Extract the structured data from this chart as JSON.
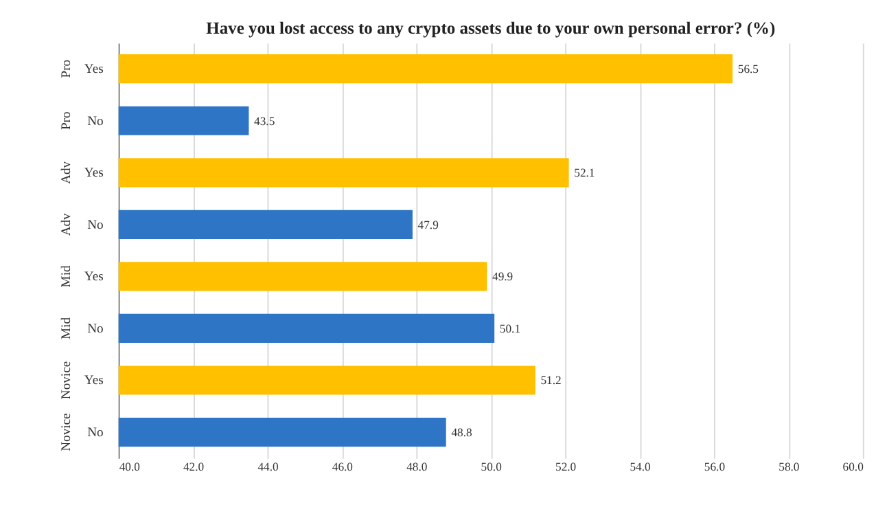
{
  "chart_data": {
    "type": "bar",
    "orientation": "horizontal",
    "title": "Have you lost access to any crypto assets due to your own personal error? (%)",
    "categories": [
      "Yes",
      "No",
      "Yes",
      "No",
      "Yes",
      "No",
      "Yes",
      "No"
    ],
    "values": [
      56.5,
      43.5,
      52.1,
      47.9,
      49.9,
      50.1,
      51.2,
      48.8
    ],
    "colors": [
      "#ffc000",
      "#2e75c6",
      "#ffc000",
      "#2e75c6",
      "#ffc000",
      "#2e75c6",
      "#ffc000",
      "#2e75c6"
    ],
    "annotations": [
      "Pro",
      "Pro",
      "Adv",
      "Adv",
      "Mid",
      "Mid",
      "Novice",
      "Novice"
    ],
    "xlim": [
      40,
      60
    ],
    "xticks": [
      {
        "value": 40,
        "label": "40.0"
      },
      {
        "value": 42,
        "label": "42.0"
      },
      {
        "value": 44,
        "label": "44.0"
      },
      {
        "value": 46,
        "label": "46.0"
      },
      {
        "value": 48,
        "label": "48.0"
      },
      {
        "value": 50,
        "label": "50.0"
      },
      {
        "value": 52,
        "label": "52.0"
      },
      {
        "value": 54,
        "label": "54.0"
      },
      {
        "value": 56,
        "label": "56.0"
      },
      {
        "value": 58,
        "label": "58.0"
      },
      {
        "value": 60,
        "label": "60.0"
      }
    ],
    "grid": "x",
    "data_labels": true
  }
}
